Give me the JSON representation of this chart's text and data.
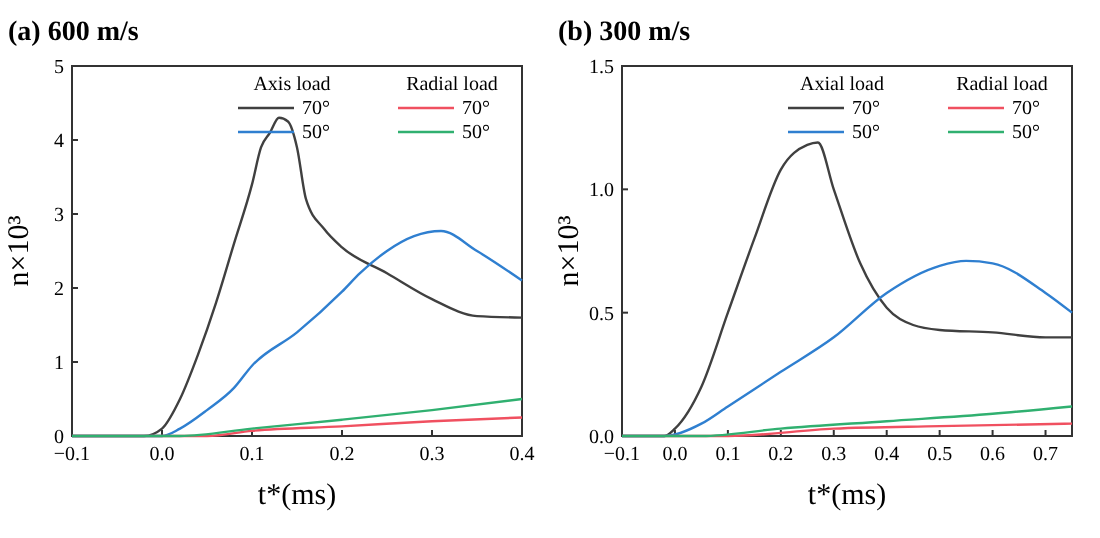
{
  "chart_data": [
    {
      "type": "line",
      "title": "(a) 600 m/s",
      "xlabel": "t*(ms)",
      "ylabel": "n×10³",
      "xlim": [
        -0.1,
        0.4
      ],
      "ylim": [
        0,
        5
      ],
      "xticks": [
        -0.1,
        {
          "value": 0,
          "label": "0.0"
        },
        0.1,
        0.2,
        0.3,
        0.4
      ],
      "yticks": [
        0,
        1,
        2,
        3,
        4,
        5
      ],
      "legend": "top right",
      "annotations": [
        "Axis load",
        "Radial load"
      ],
      "series": [
        {
          "name": "70°",
          "color": "#404040",
          "x": [
            -0.1,
            -0.02,
            0,
            0.02,
            0.04,
            0.06,
            0.08,
            0.1,
            0.11,
            0.12,
            0.13,
            0.14,
            0.15,
            0.16,
            0.18,
            0.2,
            0.25,
            0.3,
            0.35,
            0.4
          ],
          "values": [
            0,
            0,
            0.1,
            0.5,
            1.1,
            1.8,
            2.6,
            3.4,
            3.9,
            4.1,
            4.3,
            4.25,
            3.9,
            3.2,
            2.8,
            2.55,
            2.2,
            1.85,
            1.62,
            1.6
          ]
        },
        {
          "name": "50°",
          "color": "#2f7fd0",
          "x": [
            -0.1,
            0,
            0.02,
            0.05,
            0.08,
            0.1,
            0.15,
            0.2,
            0.22,
            0.25,
            0.28,
            0.31,
            0.35,
            0.4
          ],
          "values": [
            0,
            0,
            0.1,
            0.35,
            0.65,
            0.95,
            1.4,
            1.95,
            2.2,
            2.5,
            2.7,
            2.77,
            2.5,
            2.1
          ]
        },
        {
          "name": "70°",
          "color": "#f05060",
          "x": [
            -0.1,
            0.05,
            0.1,
            0.2,
            0.3,
            0.4
          ],
          "values": [
            0,
            0,
            0.07,
            0.13,
            0.2,
            0.25
          ]
        },
        {
          "name": "50°",
          "color": "#30b070",
          "x": [
            -0.1,
            0.02,
            0.1,
            0.2,
            0.3,
            0.4
          ],
          "values": [
            0,
            0,
            0.1,
            0.22,
            0.35,
            0.5
          ]
        }
      ]
    },
    {
      "type": "line",
      "title": "(b) 300 m/s",
      "xlabel": "t*(ms)",
      "ylabel": "n×10³",
      "xlim": [
        -0.1,
        0.75
      ],
      "ylim": [
        0,
        1.5
      ],
      "xticks": [
        -0.1,
        {
          "value": 0,
          "label": "0.0"
        },
        0.1,
        0.2,
        0.3,
        0.4,
        0.5,
        0.6,
        0.7
      ],
      "yticks": [
        {
          "value": 0,
          "label": "0.0"
        },
        0.5,
        {
          "value": 1,
          "label": "1.0"
        },
        1.5
      ],
      "legend": "top right",
      "annotations": [
        "Axial load",
        "Radial load"
      ],
      "series": [
        {
          "name": "70°",
          "color": "#404040",
          "x": [
            -0.1,
            -0.02,
            0,
            0.05,
            0.1,
            0.15,
            0.2,
            0.25,
            0.27,
            0.3,
            0.35,
            0.4,
            0.45,
            0.5,
            0.6,
            0.7,
            0.75
          ],
          "values": [
            0,
            0,
            0.03,
            0.2,
            0.5,
            0.8,
            1.08,
            1.18,
            1.19,
            1,
            0.7,
            0.52,
            0.45,
            0.43,
            0.42,
            0.4,
            0.4
          ]
        },
        {
          "name": "50°",
          "color": "#2f7fd0",
          "x": [
            -0.1,
            -0.02,
            0.05,
            0.1,
            0.2,
            0.3,
            0.4,
            0.5,
            0.55,
            0.6,
            0.7,
            0.75
          ],
          "values": [
            0,
            0,
            0.05,
            0.12,
            0.26,
            0.4,
            0.58,
            0.69,
            0.71,
            0.7,
            0.58,
            0.5
          ]
        },
        {
          "name": "70°",
          "color": "#f05060",
          "x": [
            -0.1,
            0.1,
            0.3,
            0.5,
            0.75
          ],
          "values": [
            0,
            0,
            0.03,
            0.04,
            0.05
          ]
        },
        {
          "name": "50°",
          "color": "#30b070",
          "x": [
            -0.1,
            0.05,
            0.2,
            0.4,
            0.6,
            0.75
          ],
          "values": [
            0,
            0,
            0.03,
            0.06,
            0.09,
            0.12
          ]
        }
      ]
    }
  ]
}
